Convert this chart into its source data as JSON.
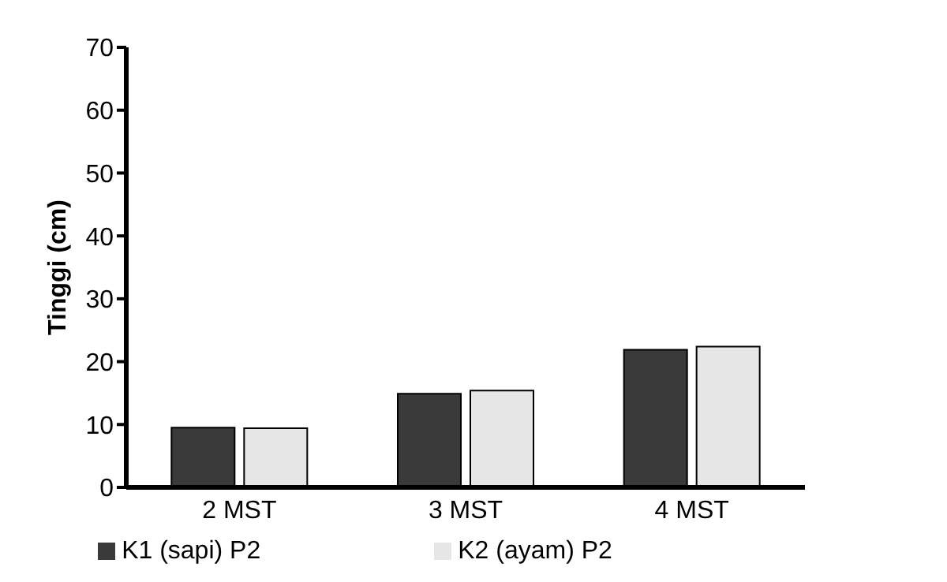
{
  "chart_data": {
    "type": "bar",
    "ylabel": "Tinggi (cm)",
    "categories": [
      "2 MST",
      "3 MST",
      "4 MST"
    ],
    "series": [
      {
        "name": "K1 (sapi) P2",
        "color": "#3a3a3a",
        "values": [
          9.5,
          14.9,
          21.9
        ]
      },
      {
        "name": "K2 (ayam) P2",
        "color": "#e6e6e6",
        "values": [
          9.4,
          15.4,
          22.4
        ]
      }
    ],
    "ylim": [
      0,
      70
    ],
    "yticks": [
      0,
      10,
      20,
      30,
      40,
      50,
      60,
      70
    ],
    "grid": false,
    "legend": "bottom"
  }
}
